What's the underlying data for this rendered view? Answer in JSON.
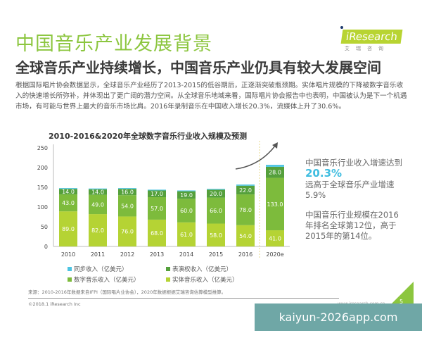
{
  "header": {
    "title": "中国音乐产业发展背景",
    "subtitle": "全球音乐产业持续增长，中国音乐产业仍具有较大发展空间",
    "logo_text": "iResearch",
    "logo_cn": "艾瑞咨询"
  },
  "paragraph": "根据国际唱片协会数据显示，全球音乐产业经历了2013-2015的低谷期后，正逐渐突破瓶颈期。实体唱片规模的下降被数字音乐收入的快速增长所弥补，并体现出了更广阔的潜力空间。从全球音乐地域来看，国际唱片协会报告中也表明，中国被认为是下一个机遇市场，有可能与世界上最大的音乐市场比肩。2016年录制音乐在中国收入增长20.3%，流媒体上升了30.6%。",
  "chart_data": {
    "type": "bar",
    "stacked": true,
    "title": "2010-2016&2020年全球数字音乐行业收入规模及预测",
    "categories": [
      "2010",
      "2011",
      "2012",
      "2013",
      "2014",
      "2015",
      "2016",
      "2020e"
    ],
    "ylim": [
      0,
      250
    ],
    "yticks": [
      0,
      50,
      100,
      150,
      200,
      250
    ],
    "grid": false,
    "legend_position": "bottom",
    "series": [
      {
        "name": "实体音乐收入（亿美元）",
        "color": "#b5d334",
        "values": [
          89,
          82,
          76,
          68,
          61,
          58,
          54,
          41
        ]
      },
      {
        "name": "数字音乐收入（亿美元）",
        "color": "#7dbb3c",
        "values": [
          43,
          49,
          54,
          57,
          60,
          66,
          78,
          133
        ]
      },
      {
        "name": "表演权收入（亿美元）",
        "color": "#55a03c",
        "values": [
          14,
          14,
          16,
          17,
          19,
          20,
          22,
          28
        ]
      },
      {
        "name": "同步收入（亿美元）",
        "color": "#4cc4e2",
        "values": [
          2,
          2,
          2,
          2,
          2,
          2,
          3,
          5
        ],
        "labeled": false
      }
    ]
  },
  "side": {
    "line1": "中国音乐行业收入增速达到",
    "highlight": "20.3%",
    "line2": "远高于全球音乐产业增速5.9%",
    "block2": "中国音乐行业规模在2016年排名全球第12位，高于2015年的第14位。"
  },
  "footer": {
    "source": "来源：2010-2016年数据来自IFPI（国际唱片业协会），2020年数据根据艾瑞咨询估算模型推算。",
    "copyright": "©2018.1 iResearch Inc",
    "website": "www.iresearch.com.cn",
    "page": "5"
  },
  "watermark": "kaiyun-2026app.com"
}
